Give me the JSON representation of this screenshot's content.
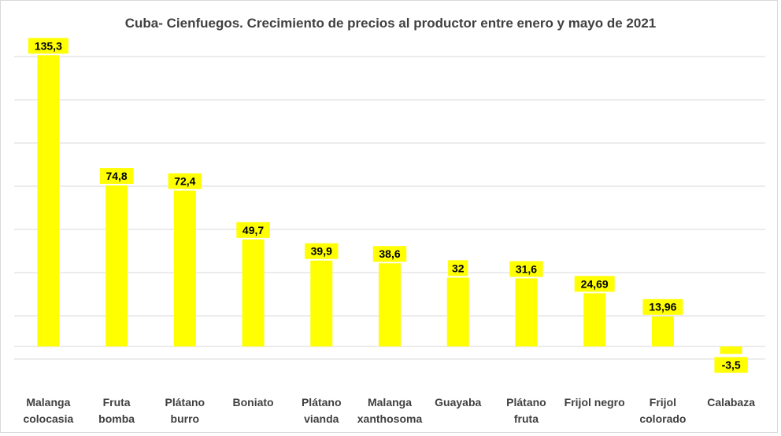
{
  "chart_data": {
    "type": "bar",
    "title": "Cuba- Cienfuegos. Crecimiento de precios al productor entre enero y mayo de 2021",
    "xlabel": "",
    "ylabel": "",
    "categories": [
      [
        "Malanga",
        "colocasia"
      ],
      [
        "Fruta",
        "bomba"
      ],
      [
        "Plátano",
        "burro"
      ],
      [
        "Boniato"
      ],
      [
        "Plátano",
        "vianda"
      ],
      [
        "Malanga",
        "xanthosoma"
      ],
      [
        "Guayaba"
      ],
      [
        "Plátano",
        "fruta"
      ],
      [
        "Frijol negro"
      ],
      [
        "Frijol",
        "colorado"
      ],
      [
        "Calabaza"
      ]
    ],
    "values": [
      135.3,
      74.8,
      72.4,
      49.7,
      39.9,
      38.6,
      32,
      31.6,
      24.69,
      13.96,
      -3.5
    ],
    "data_labels": [
      "135,3",
      "74,8",
      "72,4",
      "49,7",
      "39,9",
      "38,6",
      "32",
      "31,6",
      "24,69",
      "13,96",
      "-3,5"
    ],
    "ylim": [
      -5,
      135
    ],
    "grid": true,
    "legend": "none",
    "bar_color": "#ffff00"
  }
}
